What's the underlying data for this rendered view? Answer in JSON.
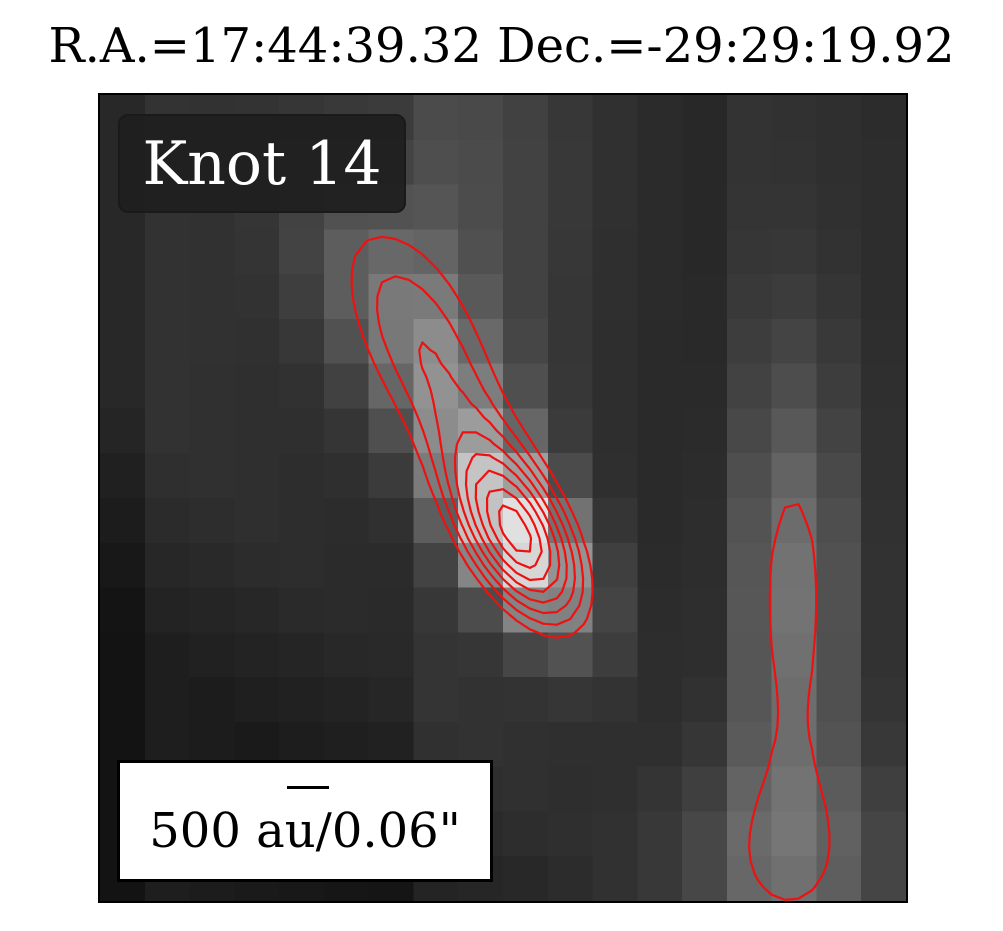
{
  "title": "R.A.=17:44:39.32 Dec.=-29:29:19.92",
  "image": {
    "label": "Knot 14",
    "scalebar_label": "500 au/0.06\"",
    "colormap": "grayscale",
    "contour_color": "#ee1111",
    "contour_levels": [
      0.4,
      0.47,
      0.54,
      0.61,
      0.68,
      0.75,
      0.82,
      0.88
    ]
  }
}
